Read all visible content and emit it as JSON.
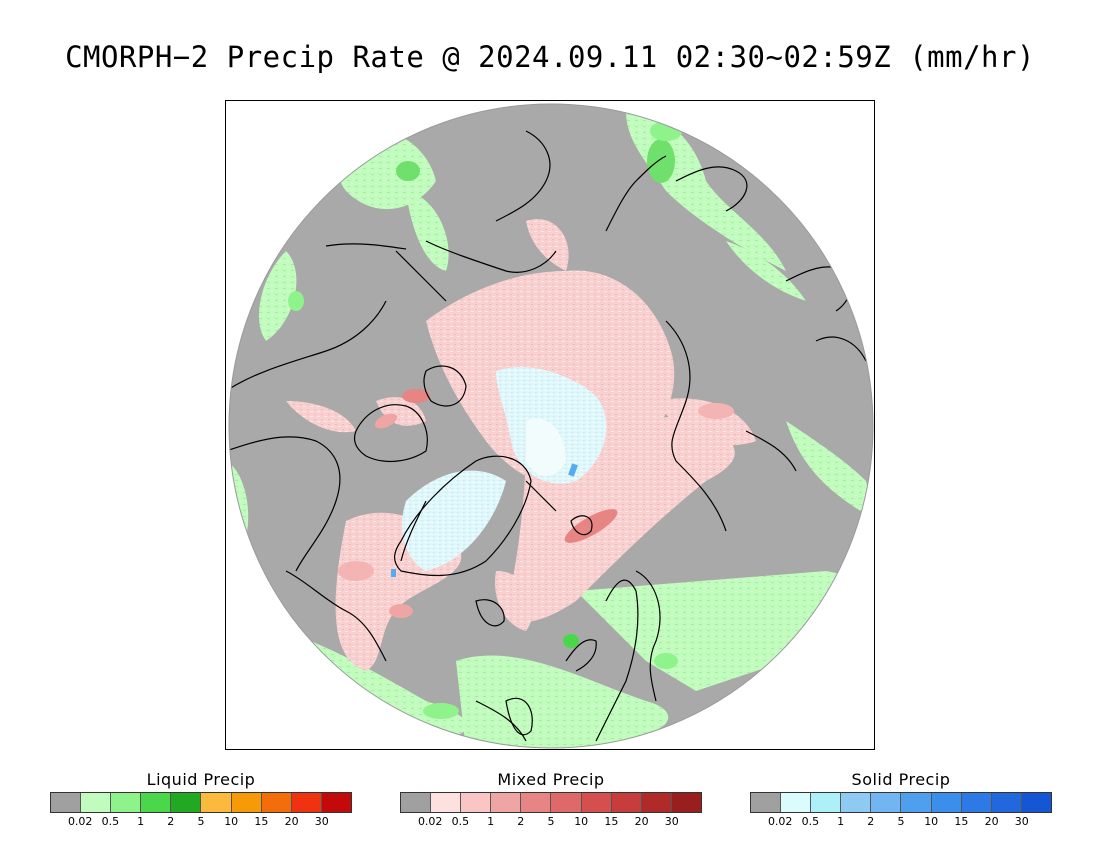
{
  "title": "CMORPH−2 Precip Rate @ 2024.09.11 02:30~02:59Z (mm/hr)",
  "map": {
    "projection": "north-polar-stereographic",
    "colors": {
      "no_precip": "#a9a9a9",
      "light_liquid": "#c1fbbd",
      "mid_liquid": "#8ef38a",
      "strong_liquid": "#4ad74a",
      "light_mixed": "#fbd6d6",
      "mid_mixed": "#f4b4b4",
      "strong_mixed": "#e78585",
      "light_solid": "#d9f6fb",
      "mid_solid": "#b6ecf6",
      "strong_solid": "#55aaf0",
      "coastline": "#000000"
    }
  },
  "legends": [
    {
      "title": "Liquid Precip",
      "colors": [
        "#a0a0a0",
        "#c1fbbd",
        "#8ef38a",
        "#4ad74a",
        "#21a921",
        "#fbba3d",
        "#f79a08",
        "#f46d0b",
        "#ef3310",
        "#c30a0a"
      ],
      "ticks": [
        "0.02",
        "0.5",
        "1",
        "2",
        "5",
        "10",
        "15",
        "20",
        "30"
      ]
    },
    {
      "title": "Mixed Precip",
      "colors": [
        "#a0a0a0",
        "#fde1e1",
        "#f9c5c5",
        "#f0a5a5",
        "#e78585",
        "#df6868",
        "#d64f4f",
        "#c73d3d",
        "#b12a2a",
        "#991f1f"
      ],
      "ticks": [
        "0.02",
        "0.5",
        "1",
        "2",
        "5",
        "10",
        "15",
        "20",
        "30"
      ]
    },
    {
      "title": "Solid Precip",
      "colors": [
        "#a0a0a0",
        "#dafcfc",
        "#aef0f8",
        "#8fcaf5",
        "#71b5f2",
        "#4ea0ee",
        "#3b8eeb",
        "#2d7ae6",
        "#2168df",
        "#1456d4"
      ],
      "ticks": [
        "0.02",
        "0.5",
        "1",
        "2",
        "5",
        "10",
        "15",
        "20",
        "30"
      ]
    }
  ]
}
